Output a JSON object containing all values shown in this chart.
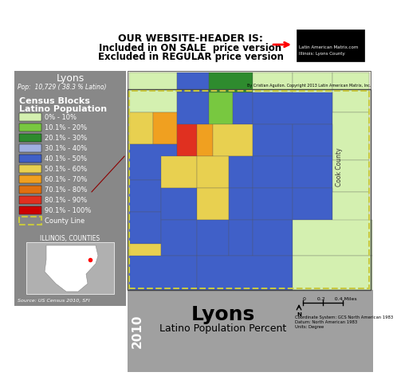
{
  "title": "Lyons",
  "subtitle": "Latino Population Percent",
  "place_name": "Lyons",
  "pop_text": "Pop:  10,729 ( 38.3 % Latino)",
  "legend_title_line1": "Census Blocks",
  "legend_title_line2": "Latino Population",
  "legend_items": [
    {
      "label": "0% - 10%",
      "color": "#d4f0b0"
    },
    {
      "label": "10.1% - 20%",
      "color": "#78c840"
    },
    {
      "label": "20.1% - 30%",
      "color": "#2e8b2e"
    },
    {
      "label": "30.1% - 40%",
      "color": "#a0b0e0"
    },
    {
      "label": "40.1% - 50%",
      "color": "#4060c8"
    },
    {
      "label": "50.1% - 60%",
      "color": "#e8d050"
    },
    {
      "label": "60.1% - 70%",
      "color": "#f0a020"
    },
    {
      "label": "70.1% - 80%",
      "color": "#e07010"
    },
    {
      "label": "80.1% - 90%",
      "color": "#e03020"
    },
    {
      "label": "90.1% - 100%",
      "color": "#cc0000"
    },
    {
      "label": "County Line",
      "color": "#c8c840",
      "is_border": true
    }
  ],
  "header_text_line1": "OUR WEBSITE-HEADER IS:",
  "header_text_line2": "Included in ON SALE  price version",
  "header_text_line3": "Excluded in REGULAR price version",
  "sidebar_bg": "#888888",
  "map_bg": "#e8e8d8",
  "bottom_bar_bg": "#a0a0a0",
  "year_text": "2010",
  "scale_text": "0       0.2      0.4 Miles",
  "coord_text": "Coordinate System: GCS North American 1983\nDatum: North American 1983\nUnits: Degree",
  "copyright_text": "By Cristian Aguilon. Copyright 2013 Latin American Matrix, Inc.",
  "illinois_counties_text": "ILLINOIS, COUNTIES",
  "source_text": "Source: US Census 2010, SFI"
}
